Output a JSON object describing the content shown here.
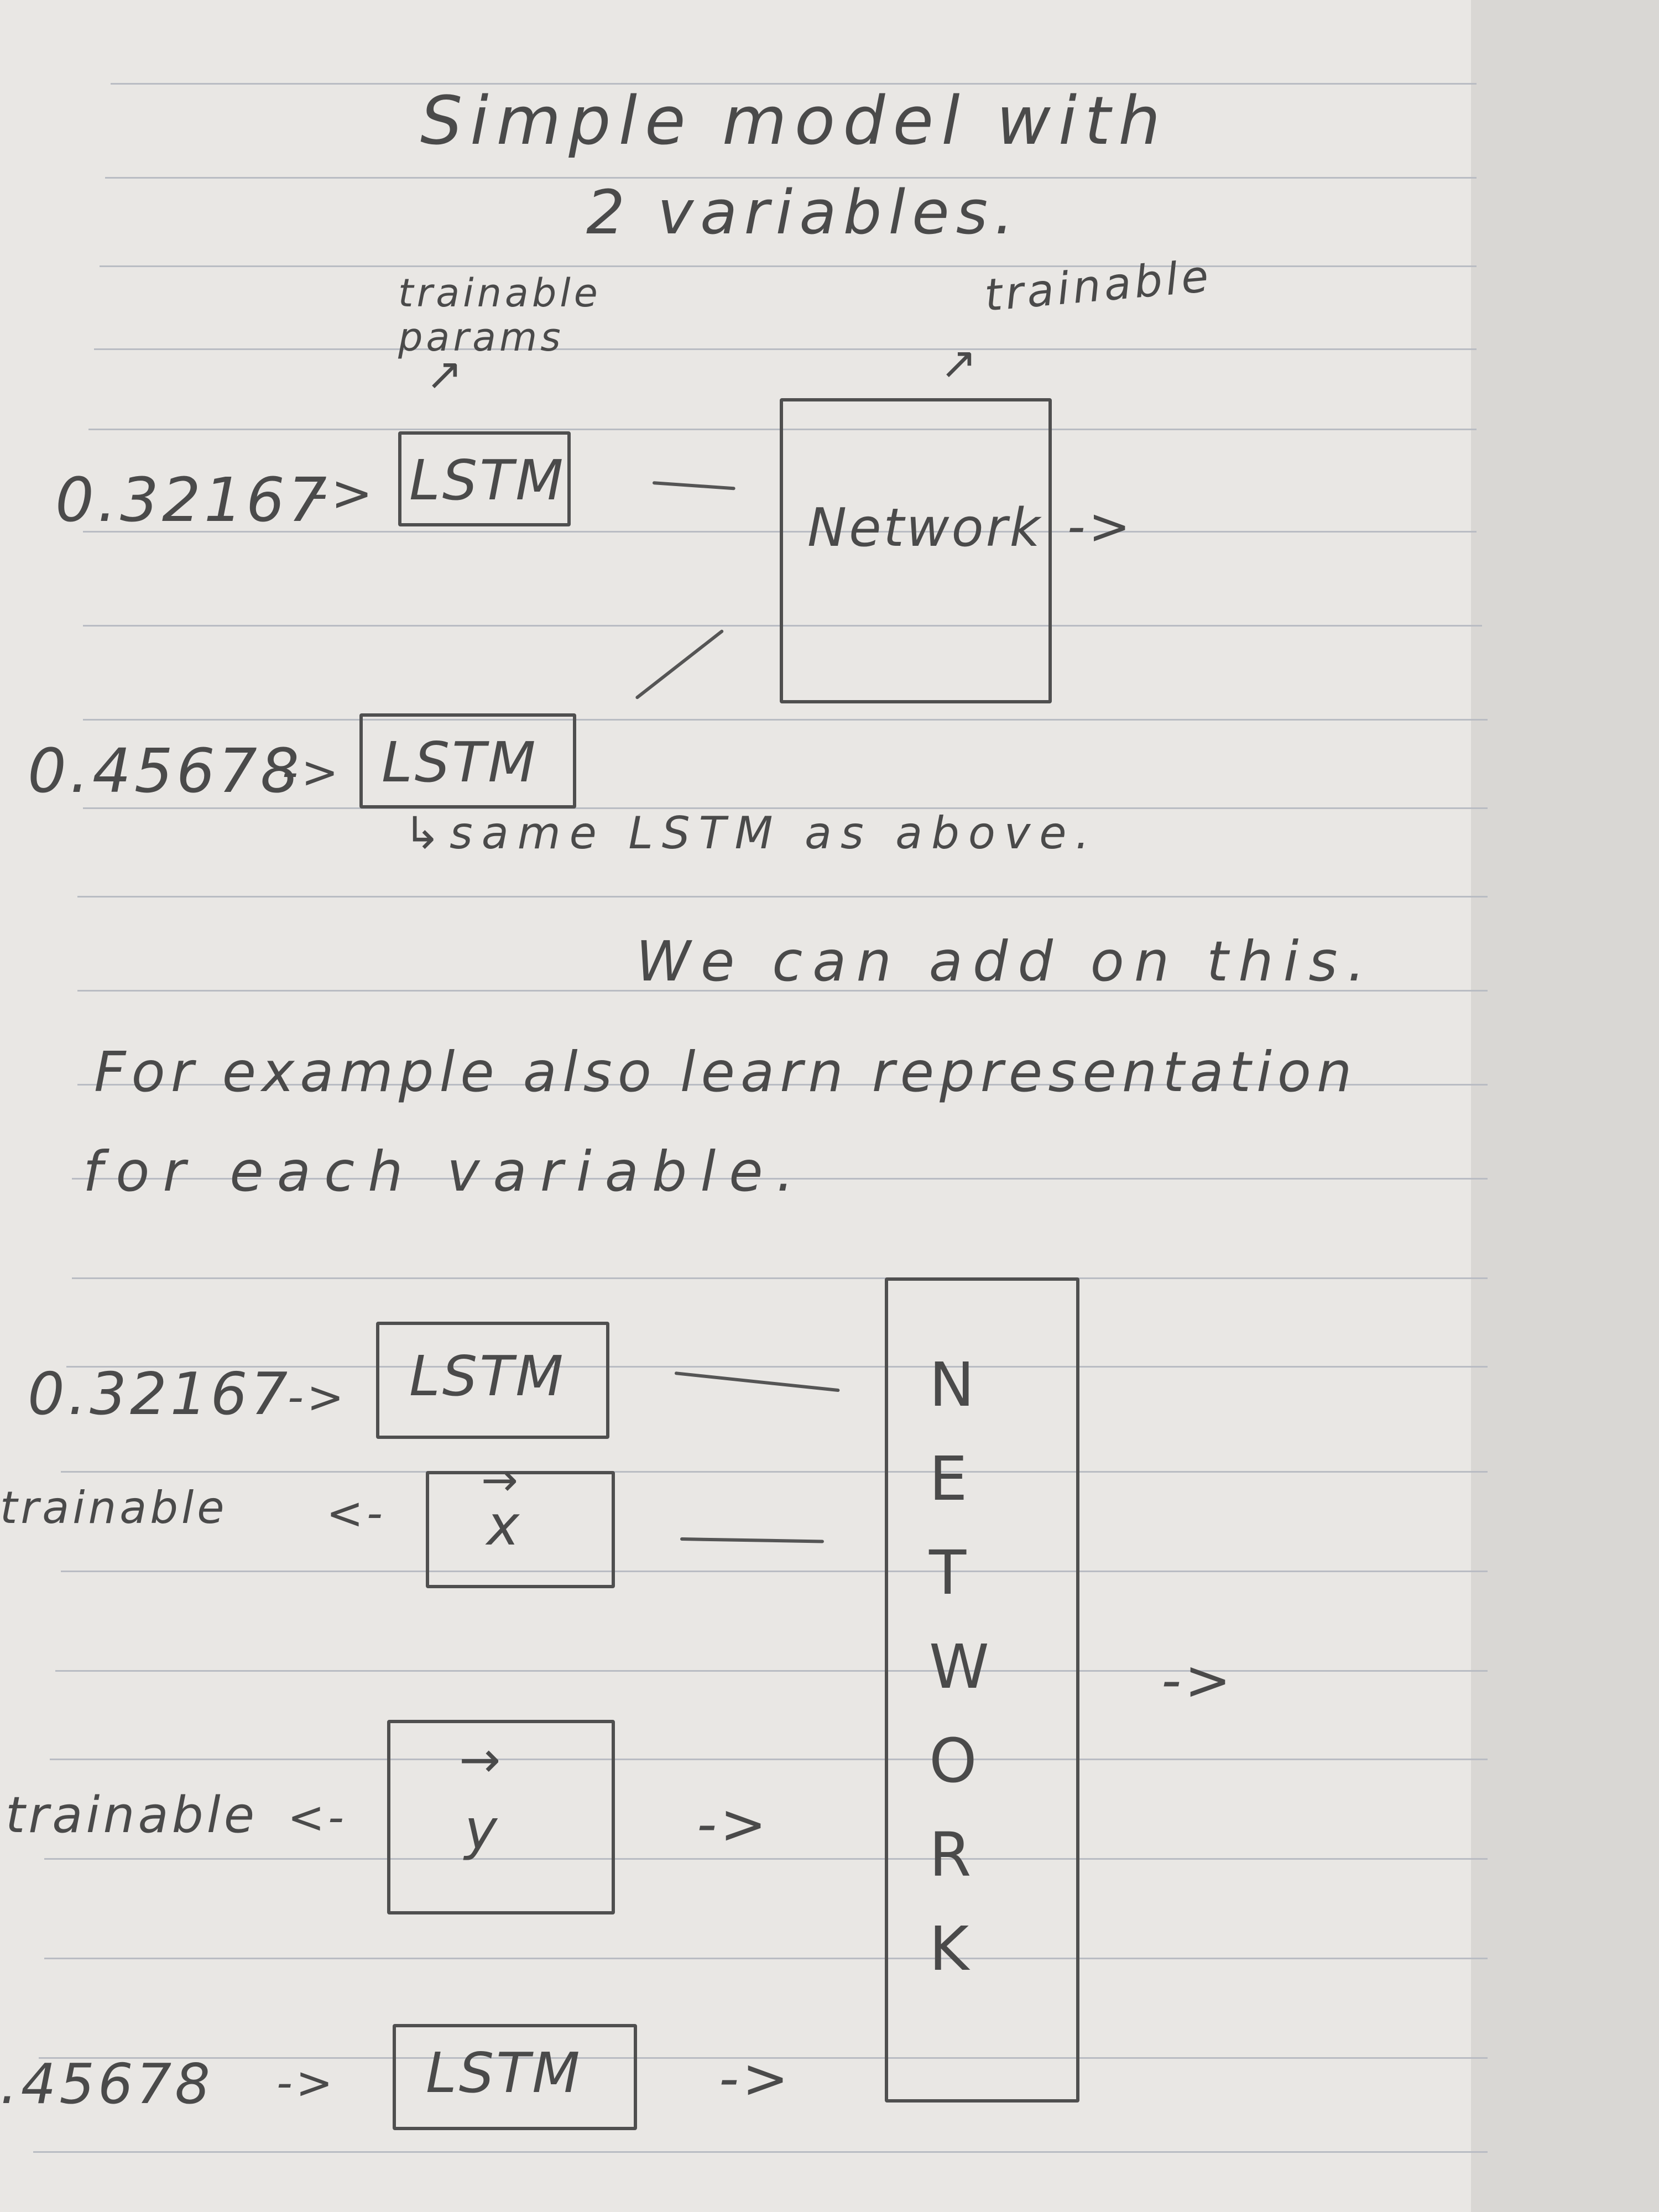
{
  "title_line1": "Simple model with",
  "title_line2": "2 variables.",
  "note_trainable_params": "trainable params",
  "note_trainable": "trainable",
  "diagram1": {
    "input_top": "0.32167",
    "input_bottom": "0.45678",
    "lstm_label": "LSTM",
    "network_label": "Network",
    "same_lstm_note": "↳same LSTM as above."
  },
  "text": {
    "line1": "We can add on this.",
    "line2": "For example also learn representation",
    "line3": "for each variable."
  },
  "diagram2": {
    "input_top": "0.32167",
    "input_bottom": ".45678",
    "lstm_label": "LSTM",
    "x_label": "x",
    "y_label": "y",
    "trainable_left_1": "trainable",
    "trainable_left_2": "trainable",
    "network_letters": [
      "N",
      "E",
      "T",
      "W",
      "O",
      "R",
      "K"
    ]
  },
  "arrow": "->"
}
